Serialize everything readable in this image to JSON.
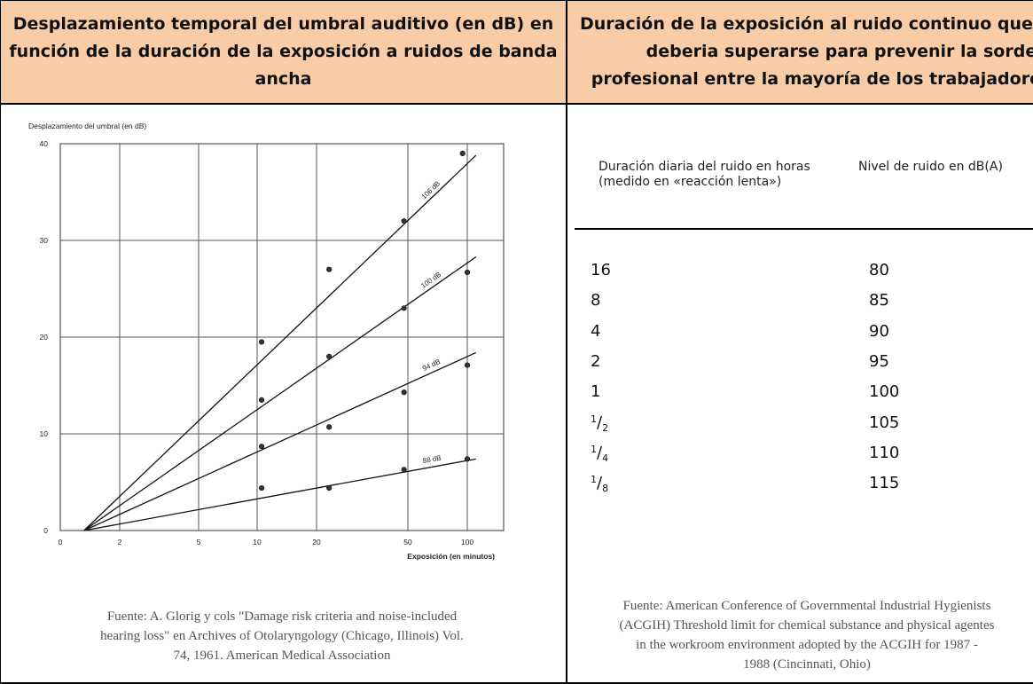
{
  "left_panel": {
    "header": "Desplazamiento temporal del umbral auditivo (en dB) en función de la duración de la exposición a ruidos de banda ancha",
    "source": [
      "Fuente: A. Glorig y cols \"Damage risk criteria and noise-included",
      "hearing loss\" en Archives of Otolaryngology (Chicago, Illinois) Vol.",
      "74, 1961. American Medical Association"
    ]
  },
  "right_panel": {
    "header": [
      "Duración de la exposición al ruido continuo que no",
      "deberia superarse para prevenir la sordera",
      "profesional entre la mayoría de los trabajadores"
    ],
    "table": {
      "col1_header": [
        "Duración diaria del ruido en horas",
        "(medido en «reacción lenta»)"
      ],
      "col2_header": "Nivel de ruido en dB(A)",
      "rows": [
        {
          "hours": "16",
          "level": "80"
        },
        {
          "hours": "8",
          "level": "85"
        },
        {
          "hours": "4",
          "level": "90"
        },
        {
          "hours": "2",
          "level": "95"
        },
        {
          "hours": "1",
          "level": "100"
        },
        {
          "hours_num": "1",
          "hours_den": "2",
          "level": "105"
        },
        {
          "hours_num": "1",
          "hours_den": "4",
          "level": "110"
        },
        {
          "hours_num": "1",
          "hours_den": "8",
          "level": "115"
        }
      ]
    },
    "source": [
      "Fuente: American Conference of Governmental Industrial Hygienists",
      "(ACGIH) Threshold limit for chemical substance and physical agentes",
      "in the workroom environment adopted by the ACGIH for 1987 -",
      "1988 (Cincinnati, Ohio)"
    ]
  },
  "chart_data": {
    "type": "scatter",
    "title": "",
    "ylabel": "Desplazamiento del umbral (en dB)",
    "xlabel": "Exposición (en minutos)",
    "x_scale": "log",
    "x_ticks": [
      0,
      2,
      5,
      10,
      20,
      50,
      100
    ],
    "y_ticks": [
      0,
      10,
      20,
      30,
      40
    ],
    "ylim": [
      0,
      40
    ],
    "series": [
      {
        "name": "106 dB",
        "points": [
          [
            10.5,
            19.5
          ],
          [
            22,
            27
          ],
          [
            50,
            32
          ],
          [
            95,
            39
          ]
        ],
        "line": [
          [
            1.5,
            0
          ],
          [
            110,
            38.8
          ]
        ]
      },
      {
        "name": "100 dB",
        "points": [
          [
            10.5,
            13.5
          ],
          [
            22,
            18
          ],
          [
            50,
            23
          ],
          [
            100,
            26.7
          ]
        ],
        "line": [
          [
            1.5,
            0
          ],
          [
            110,
            28.3
          ]
        ]
      },
      {
        "name": "94 dB",
        "points": [
          [
            10.5,
            8.7
          ],
          [
            22,
            10.7
          ],
          [
            50,
            14.3
          ],
          [
            100,
            17.1
          ]
        ],
        "line": [
          [
            1.5,
            0
          ],
          [
            110,
            18.4
          ]
        ]
      },
      {
        "name": "88 dB",
        "points": [
          [
            10.5,
            4.4
          ],
          [
            22,
            4.4
          ],
          [
            50,
            6.3
          ],
          [
            100,
            7.4
          ]
        ],
        "line": [
          [
            1.5,
            0
          ],
          [
            110,
            7.4
          ]
        ]
      }
    ]
  }
}
